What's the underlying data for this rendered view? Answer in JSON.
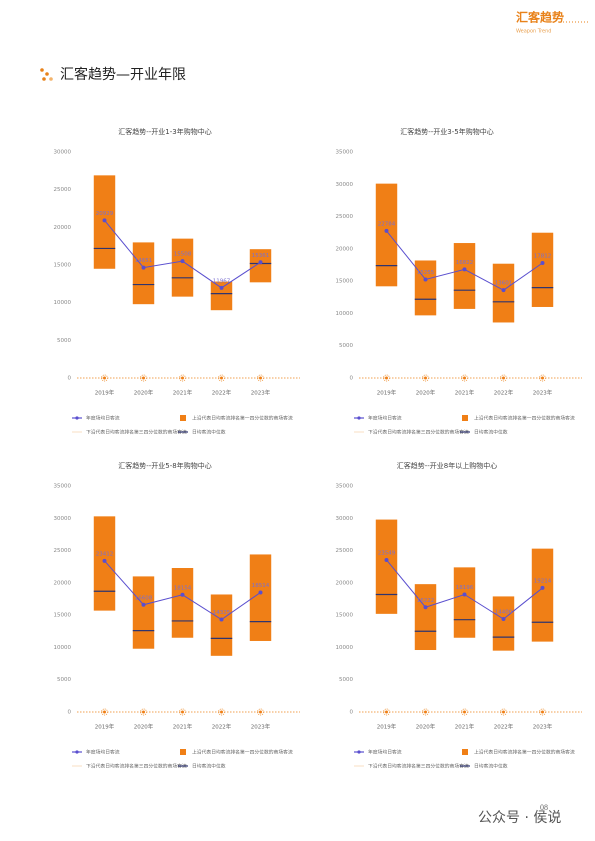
{
  "header": {
    "brand": "汇客趋势",
    "brand_sub": "Weapon Trend"
  },
  "page_title": "汇客趋势—开业年限",
  "footer": {
    "page_number": "08",
    "watermark": "公众号 · 侯说"
  },
  "chart_data": [
    {
      "type": "floating-bar",
      "title": "汇客趋势--开业1-3年购物中心",
      "categories": [
        "2019年",
        "2020年",
        "2021年",
        "2022年",
        "2023年"
      ],
      "ylim": [
        0,
        30000
      ],
      "yticks": [
        0,
        5000,
        10000,
        15000,
        20000,
        25000,
        30000
      ],
      "grid": false,
      "series": [
        {
          "name": "年度场均日客流",
          "color": "#5a4fcf",
          "values": [
            20929,
            14651,
            15508,
            11967,
            15361
          ]
        },
        {
          "name": "上沿代表日均客流排名第一四分位数的商场客流",
          "color": "#f07f16",
          "values": [
            26900,
            18000,
            18500,
            12800,
            17100
          ]
        },
        {
          "name": "下沿代表日均客流排名第三四分位数的商场客流",
          "color": "#f6c99a",
          "values": [
            14500,
            9800,
            10800,
            9000,
            12700
          ]
        },
        {
          "name": "日均客流中位数",
          "color": "#2e3470",
          "values": [
            17200,
            12400,
            13300,
            11200,
            15200
          ]
        }
      ]
    },
    {
      "type": "floating-bar",
      "title": "汇客趋势--开业3-5年购物中心",
      "categories": [
        "2019年",
        "2020年",
        "2021年",
        "2022年",
        "2023年"
      ],
      "ylim": [
        0,
        35000
      ],
      "yticks": [
        0,
        5000,
        10000,
        15000,
        20000,
        25000,
        30000,
        35000
      ],
      "grid": false,
      "series": [
        {
          "name": "年度场均日客流",
          "color": "#5a4fcf",
          "values": [
            22784,
            15255,
            16822,
            13601,
            17812
          ]
        },
        {
          "name": "上沿代表日均客流排名第一四分位数的商场客流",
          "color": "#f07f16",
          "values": [
            30100,
            18200,
            20900,
            17700,
            22500
          ]
        },
        {
          "name": "下沿代表日均客流排名第三四分位数的商场客流",
          "color": "#f6c99a",
          "values": [
            14200,
            9700,
            10700,
            8600,
            11000
          ]
        },
        {
          "name": "日均客流中位数",
          "color": "#2e3470",
          "values": [
            17400,
            12200,
            13600,
            11800,
            14000
          ]
        }
      ]
    },
    {
      "type": "floating-bar",
      "title": "汇客趋势--开业5-8年购物中心",
      "categories": [
        "2019年",
        "2020年",
        "2021年",
        "2022年",
        "2023年"
      ],
      "ylim": [
        0,
        35000
      ],
      "yticks": [
        0,
        5000,
        10000,
        15000,
        20000,
        25000,
        30000,
        35000
      ],
      "grid": false,
      "series": [
        {
          "name": "年度场均日客流",
          "color": "#5a4fcf",
          "values": [
            23412,
            16608,
            18154,
            14325,
            18514
          ]
        },
        {
          "name": "上沿代表日均客流排名第一四分位数的商场客流",
          "color": "#f07f16",
          "values": [
            30300,
            21000,
            22300,
            18200,
            24400
          ]
        },
        {
          "name": "下沿代表日均客流排名第三四分位数的商场客流",
          "color": "#f6c99a",
          "values": [
            15700,
            9800,
            11500,
            8700,
            11000
          ]
        },
        {
          "name": "日均客流中位数",
          "color": "#2e3470",
          "values": [
            18700,
            12600,
            14100,
            11400,
            14000
          ]
        }
      ]
    },
    {
      "type": "floating-bar",
      "title": "汇客趋势--开业8年以上购物中心",
      "categories": [
        "2019年",
        "2020年",
        "2021年",
        "2022年",
        "2023年"
      ],
      "ylim": [
        0,
        35000
      ],
      "yticks": [
        0,
        5000,
        10000,
        15000,
        20000,
        25000,
        30000,
        35000
      ],
      "grid": false,
      "series": [
        {
          "name": "年度场均日客流",
          "color": "#5a4fcf",
          "values": [
            23549,
            16222,
            18196,
            14400,
            19214
          ]
        },
        {
          "name": "上沿代表日均客流排名第一四分位数的商场客流",
          "color": "#f07f16",
          "values": [
            29800,
            19800,
            22400,
            17900,
            25300
          ]
        },
        {
          "name": "下沿代表日均客流排名第三四分位数的商场客流",
          "color": "#f6c99a",
          "values": [
            15200,
            9600,
            11500,
            9500,
            10900
          ]
        },
        {
          "name": "日均客流中位数",
          "color": "#2e3470",
          "values": [
            18200,
            12500,
            14300,
            11600,
            13900
          ]
        }
      ]
    }
  ]
}
